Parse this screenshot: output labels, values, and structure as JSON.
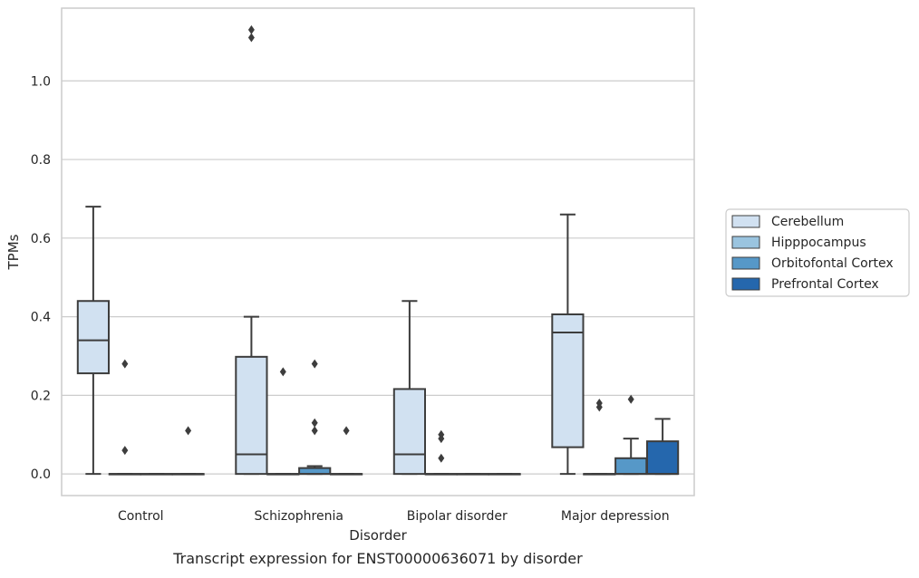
{
  "chart_data": {
    "type": "box",
    "caption": "Transcript expression for ENST00000636071 by disorder",
    "xlabel": "Disorder",
    "ylabel": "TPMs",
    "ylim": [
      -0.055,
      1.185
    ],
    "yticks": [
      0.0,
      0.2,
      0.4,
      0.6,
      0.8,
      1.0
    ],
    "ytick_labels": [
      "0.0",
      "0.2",
      "0.4",
      "0.6",
      "0.8",
      "1.0"
    ],
    "grid": "horizontal",
    "legend_position": "right",
    "categories": [
      "Control",
      "Schizophrenia",
      "Bipolar disorder",
      "Major depression"
    ],
    "series": [
      {
        "name": "Cerebellum",
        "color": "#d1e1f1",
        "boxes": [
          {
            "q1": 0.256,
            "median": 0.34,
            "q3": 0.44,
            "whisker_low": 0.0,
            "whisker_high": 0.68,
            "outliers": []
          },
          {
            "q1": 0.0,
            "median": 0.05,
            "q3": 0.298,
            "whisker_low": 0.0,
            "whisker_high": 0.4,
            "outliers": [
              1.11,
              1.13
            ]
          },
          {
            "q1": 0.0,
            "median": 0.05,
            "q3": 0.216,
            "whisker_low": 0.0,
            "whisker_high": 0.44,
            "outliers": []
          },
          {
            "q1": 0.068,
            "median": 0.36,
            "q3": 0.406,
            "whisker_low": 0.0,
            "whisker_high": 0.66,
            "outliers": []
          }
        ]
      },
      {
        "name": "Hipppocampus",
        "color": "#9ac4df",
        "boxes": [
          {
            "q1": 0.0,
            "median": 0.0,
            "q3": 0.0,
            "whisker_low": 0.0,
            "whisker_high": 0.0,
            "outliers": [
              0.06,
              0.28
            ]
          },
          {
            "q1": 0.0,
            "median": 0.0,
            "q3": 0.0,
            "whisker_low": 0.0,
            "whisker_high": 0.0,
            "outliers": [
              0.26
            ]
          },
          {
            "q1": 0.0,
            "median": 0.0,
            "q3": 0.0,
            "whisker_low": 0.0,
            "whisker_high": 0.0,
            "outliers": [
              0.04,
              0.09,
              0.1
            ]
          },
          {
            "q1": 0.0,
            "median": 0.0,
            "q3": 0.0,
            "whisker_low": 0.0,
            "whisker_high": 0.0,
            "outliers": [
              0.17,
              0.18
            ]
          }
        ]
      },
      {
        "name": "Orbitofontal Cortex",
        "color": "#5698c8",
        "boxes": [
          {
            "q1": 0.0,
            "median": 0.0,
            "q3": 0.0,
            "whisker_low": 0.0,
            "whisker_high": 0.0,
            "outliers": []
          },
          {
            "q1": 0.0,
            "median": 0.0,
            "q3": 0.015,
            "whisker_low": 0.0,
            "whisker_high": 0.02,
            "outliers": [
              0.11,
              0.13,
              0.28
            ]
          },
          {
            "q1": 0.0,
            "median": 0.0,
            "q3": 0.0,
            "whisker_low": 0.0,
            "whisker_high": 0.0,
            "outliers": []
          },
          {
            "q1": 0.0,
            "median": 0.0,
            "q3": 0.04,
            "whisker_low": 0.0,
            "whisker_high": 0.09,
            "outliers": [
              0.19
            ]
          }
        ]
      },
      {
        "name": "Prefrontal Cortex",
        "color": "#2567ad",
        "boxes": [
          {
            "q1": 0.0,
            "median": 0.0,
            "q3": 0.0,
            "whisker_low": 0.0,
            "whisker_high": 0.0,
            "outliers": [
              0.11
            ]
          },
          {
            "q1": 0.0,
            "median": 0.0,
            "q3": 0.0,
            "whisker_low": 0.0,
            "whisker_high": 0.0,
            "outliers": [
              0.11
            ]
          },
          {
            "q1": 0.0,
            "median": 0.0,
            "q3": 0.0,
            "whisker_low": 0.0,
            "whisker_high": 0.0,
            "outliers": []
          },
          {
            "q1": 0.0,
            "median": 0.0,
            "q3": 0.083,
            "whisker_low": 0.0,
            "whisker_high": 0.14,
            "outliers": []
          }
        ]
      }
    ]
  }
}
